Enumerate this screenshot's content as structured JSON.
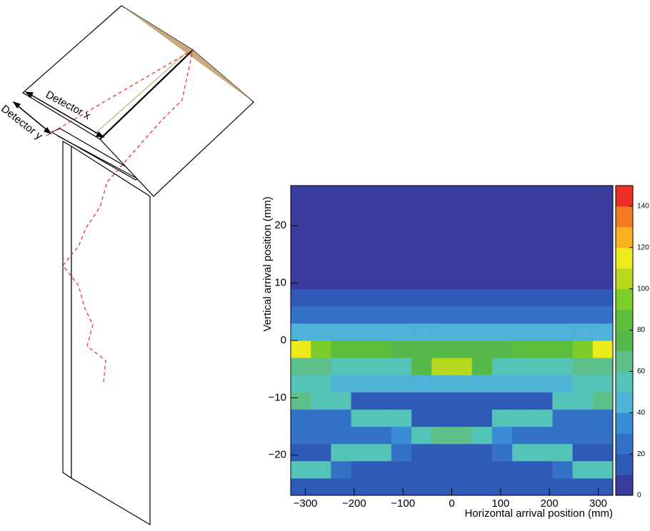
{
  "diagram": {
    "labels": [
      "Detector x",
      "Detector y"
    ]
  },
  "chart_data": {
    "type": "heatmap",
    "xlabel": "Horizontal arrival position (mm)",
    "ylabel": "Vertical arrival position (mm)",
    "xlim": [
      -330,
      330
    ],
    "ylim": [
      -27,
      27
    ],
    "xticks": [
      {
        "value": -300,
        "label": "−300"
      },
      {
        "value": -200,
        "label": "−200"
      },
      {
        "value": -100,
        "label": "−100"
      },
      0,
      100,
      200,
      300
    ],
    "yticks": [
      {
        "value": -20,
        "label": "−20"
      },
      {
        "value": -10,
        "label": "−10"
      },
      0,
      10,
      20
    ],
    "x_edges": [
      -330,
      -288.75,
      -247.5,
      -206.25,
      -165,
      -123.75,
      -82.5,
      -41.25,
      0,
      41.25,
      82.5,
      123.75,
      165,
      206.25,
      247.5,
      288.75,
      330
    ],
    "y_edges": [
      -27,
      -24,
      -21,
      -18,
      -15,
      -12,
      -9,
      -6,
      -3,
      0,
      3,
      6,
      9,
      12,
      15,
      18,
      21,
      24,
      27
    ],
    "z": [
      [
        15,
        15,
        15,
        15,
        15,
        15,
        15,
        15,
        15,
        15,
        15,
        15,
        15,
        15,
        15,
        15
      ],
      [
        50,
        50,
        20,
        18,
        17,
        16,
        15,
        15,
        15,
        15,
        16,
        17,
        18,
        20,
        50,
        50
      ],
      [
        18,
        18,
        50,
        50,
        50,
        20,
        18,
        16,
        16,
        18,
        20,
        50,
        50,
        50,
        18,
        18
      ],
      [
        20,
        20,
        20,
        22,
        25,
        30,
        55,
        60,
        60,
        55,
        30,
        25,
        22,
        20,
        20,
        20
      ],
      [
        20,
        20,
        22,
        50,
        50,
        50,
        15,
        14,
        14,
        15,
        50,
        50,
        50,
        22,
        20,
        20
      ],
      [
        60,
        58,
        55,
        18,
        15,
        14,
        13,
        12,
        12,
        13,
        14,
        15,
        18,
        55,
        58,
        60
      ],
      [
        50,
        50,
        48,
        45,
        45,
        45,
        45,
        40,
        40,
        45,
        45,
        45,
        45,
        48,
        50,
        50
      ],
      [
        60,
        60,
        58,
        58,
        55,
        55,
        70,
        100,
        100,
        70,
        55,
        55,
        58,
        58,
        60,
        60
      ],
      [
        110,
        90,
        85,
        80,
        80,
        78,
        75,
        75,
        75,
        75,
        78,
        80,
        80,
        85,
        95,
        110
      ],
      [
        40,
        40,
        40,
        40,
        40,
        40,
        40,
        40,
        40,
        40,
        40,
        40,
        40,
        40,
        40,
        40
      ],
      [
        25,
        25,
        25,
        25,
        25,
        25,
        25,
        25,
        25,
        25,
        25,
        25,
        25,
        25,
        25,
        25
      ],
      [
        12,
        12,
        12,
        12,
        12,
        12,
        12,
        12,
        12,
        12,
        12,
        12,
        12,
        12,
        12,
        12
      ],
      [
        9,
        9,
        9,
        9,
        9,
        9,
        9,
        9,
        9,
        9,
        9,
        9,
        9,
        9,
        9,
        9
      ],
      [
        8,
        8,
        8,
        8,
        8,
        8,
        8,
        8,
        8,
        8,
        8,
        8,
        8,
        8,
        8,
        8
      ],
      [
        8,
        8,
        8,
        8,
        8,
        8,
        8,
        8,
        8,
        8,
        8,
        8,
        8,
        8,
        8,
        8
      ],
      [
        8,
        8,
        8,
        8,
        8,
        8,
        8,
        8,
        8,
        8,
        8,
        8,
        8,
        8,
        8,
        8
      ],
      [
        8,
        8,
        8,
        8,
        8,
        8,
        8,
        8,
        8,
        8,
        8,
        8,
        8,
        8,
        8,
        8
      ],
      [
        8,
        8,
        8,
        8,
        8,
        8,
        8,
        8,
        8,
        8,
        8,
        8,
        8,
        8,
        8,
        8
      ]
    ],
    "zlim": [
      0,
      150
    ],
    "zticks": [
      0,
      20,
      40,
      60,
      80,
      100,
      120,
      140
    ],
    "colors": [
      "#3a3d9e",
      "#2f5ab8",
      "#3472c8",
      "#3a8cd6",
      "#4fb3d8",
      "#55c4b8",
      "#5dc08a",
      "#55b84a",
      "#5cbe3c",
      "#7ccc2a",
      "#b6d91e",
      "#ecea1b",
      "#f7b11c",
      "#f57a23",
      "#ee2f25"
    ]
  }
}
